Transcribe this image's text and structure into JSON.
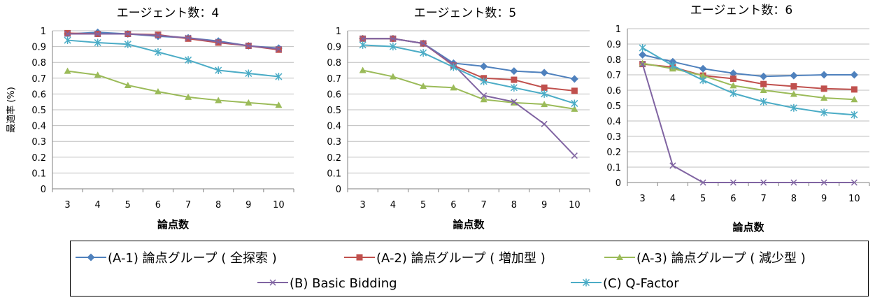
{
  "ylabel": "最適率 (%)",
  "legend": {
    "entries": [
      {
        "label": "(A-1) 論点グループ ( 全探索 )",
        "color": "#4F81BD",
        "marker": "diamond"
      },
      {
        "label": "(A-2) 論点グループ ( 増加型 )",
        "color": "#C0504D",
        "marker": "square"
      },
      {
        "label": "(A-3) 論点グループ ( 減少型 )",
        "color": "#9BBB59",
        "marker": "triangle"
      },
      {
        "label": "(B) Basic Bidding",
        "color": "#8064A2",
        "marker": "x"
      },
      {
        "label": "(C) Q-Factor",
        "color": "#4BACC6",
        "marker": "star"
      }
    ]
  },
  "chart_data": [
    {
      "type": "line",
      "title": "エージェント数：4",
      "xlabel": "論点数",
      "x": [
        3,
        4,
        5,
        6,
        7,
        8,
        9,
        10
      ],
      "ylim": [
        0,
        1
      ],
      "yticks": [
        "0",
        "0.1",
        "0.2",
        "0.3",
        "0.4",
        "0.5",
        "0.6",
        "0.7",
        "0.8",
        "0.9",
        "1"
      ],
      "grid": true,
      "series": [
        {
          "name": "(A-1) 論点グループ ( 全探索 )",
          "values": [
            0.98,
            0.99,
            0.98,
            0.965,
            0.955,
            0.935,
            0.905,
            0.89
          ]
        },
        {
          "name": "(A-2) 論点グループ ( 増加型 )",
          "values": [
            0.985,
            0.98,
            0.98,
            0.975,
            0.95,
            0.925,
            0.905,
            0.88
          ]
        },
        {
          "name": "(A-3) 論点グループ ( 減少型 )",
          "values": [
            0.745,
            0.72,
            0.655,
            0.615,
            0.58,
            0.56,
            0.545,
            0.53
          ]
        },
        {
          "name": "(B) Basic Bidding",
          "values": [
            0.98,
            0.98,
            0.98,
            0.97,
            0.955,
            0.93,
            0.905,
            0.885
          ]
        },
        {
          "name": "(C) Q-Factor",
          "values": [
            0.94,
            0.925,
            0.915,
            0.865,
            0.815,
            0.75,
            0.73,
            0.71
          ]
        }
      ]
    },
    {
      "type": "line",
      "title": "エージェント数：5",
      "xlabel": "論点数",
      "x": [
        3,
        4,
        5,
        6,
        7,
        8,
        9,
        10
      ],
      "ylim": [
        0,
        1
      ],
      "yticks": [
        "0",
        "0.1",
        "0.2",
        "0.3",
        "0.4",
        "0.5",
        "0.6",
        "0.7",
        "0.8",
        "0.9",
        "1"
      ],
      "grid": true,
      "series": [
        {
          "name": "(A-1) 論点グループ ( 全探索 )",
          "values": [
            0.95,
            0.95,
            0.92,
            0.795,
            0.775,
            0.745,
            0.735,
            0.695
          ]
        },
        {
          "name": "(A-2) 論点グループ ( 増加型 )",
          "values": [
            0.95,
            0.95,
            0.92,
            0.78,
            0.7,
            0.69,
            0.64,
            0.62
          ]
        },
        {
          "name": "(A-3) 論点グループ ( 減少型 )",
          "values": [
            0.75,
            0.71,
            0.65,
            0.64,
            0.565,
            0.545,
            0.535,
            0.505
          ]
        },
        {
          "name": "(B) Basic Bidding",
          "values": [
            0.95,
            0.95,
            0.92,
            0.785,
            0.59,
            0.55,
            0.41,
            0.21
          ]
        },
        {
          "name": "(C) Q-Factor",
          "values": [
            0.91,
            0.9,
            0.86,
            0.77,
            0.68,
            0.64,
            0.6,
            0.54
          ]
        }
      ]
    },
    {
      "type": "line",
      "title": "エージェント数：6",
      "xlabel": "論点数",
      "x": [
        3,
        4,
        5,
        6,
        7,
        8,
        9,
        10
      ],
      "ylim": [
        0,
        1
      ],
      "yticks": [
        "0",
        "0.1",
        "0.2",
        "0.3",
        "0.4",
        "0.5",
        "0.6",
        "0.7",
        "0.8",
        "0.9",
        "1"
      ],
      "grid": true,
      "series": [
        {
          "name": "(A-1) 論点グループ ( 全探索 )",
          "values": [
            0.83,
            0.785,
            0.74,
            0.71,
            0.69,
            0.695,
            0.7,
            0.7
          ]
        },
        {
          "name": "(A-2) 論点グループ ( 増加型 )",
          "values": [
            0.77,
            0.75,
            0.695,
            0.675,
            0.64,
            0.625,
            0.61,
            0.605
          ]
        },
        {
          "name": "(A-3) 論点グループ ( 減少型 )",
          "values": [
            0.775,
            0.74,
            0.695,
            0.63,
            0.6,
            0.575,
            0.55,
            0.54
          ]
        },
        {
          "name": "(B) Basic Bidding",
          "values": [
            0.77,
            0.11,
            0.0,
            0.0,
            0.0,
            0.0,
            0.0,
            0.0
          ]
        },
        {
          "name": "(C) Q-Factor",
          "values": [
            0.875,
            0.76,
            0.665,
            0.58,
            0.525,
            0.485,
            0.455,
            0.44
          ]
        }
      ]
    }
  ]
}
